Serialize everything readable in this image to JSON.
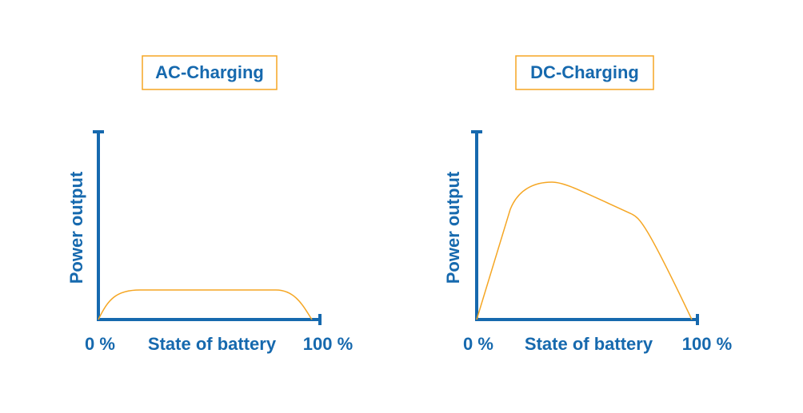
{
  "panels": [
    {
      "title": "AC-Charging",
      "y_label": "Power output",
      "x_start": "0 %",
      "x_label": "State of battery",
      "x_end": "100 %"
    },
    {
      "title": "DC-Charging",
      "y_label": "Power output",
      "x_start": "0 %",
      "x_label": "State of battery",
      "x_end": "100 %"
    }
  ]
}
